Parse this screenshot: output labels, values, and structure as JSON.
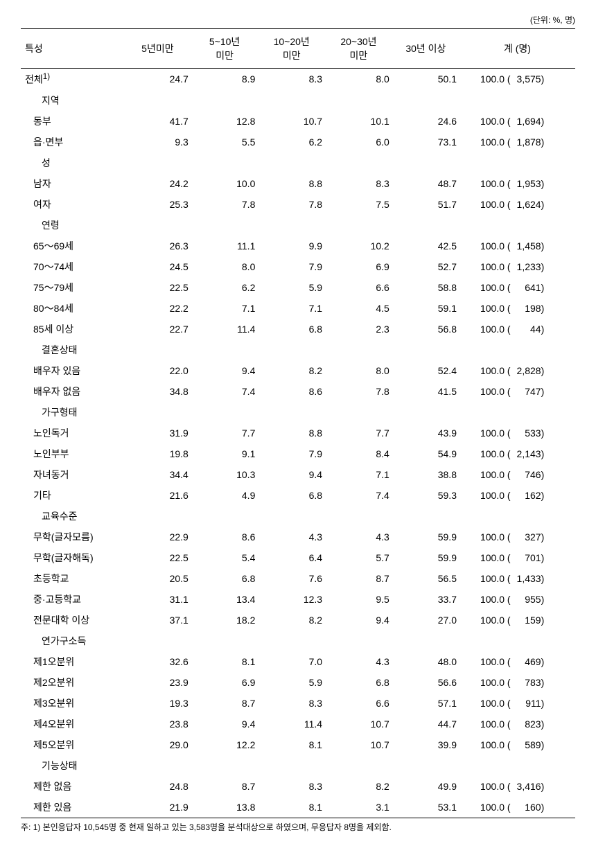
{
  "unit_label": "(단위: %, 명)",
  "columns": {
    "c0": "특성",
    "c1": "5년미만",
    "c2": "5~10년\n미만",
    "c3": "10~20년\n미만",
    "c4": "20~30년\n미만",
    "c5": "30년 이상",
    "c6": "계 (명)"
  },
  "sections": [
    {
      "header": null,
      "rows": [
        {
          "label": "전체",
          "sup": "1)",
          "v": [
            "24.7",
            "8.9",
            "8.3",
            "8.0",
            "50.1"
          ],
          "pct": "100.0",
          "n": "3,575",
          "indent": false
        }
      ]
    },
    {
      "header": "지역",
      "rows": [
        {
          "label": "동부",
          "v": [
            "41.7",
            "12.8",
            "10.7",
            "10.1",
            "24.6"
          ],
          "pct": "100.0",
          "n": "1,694",
          "indent": true
        },
        {
          "label": "읍·면부",
          "v": [
            "9.3",
            "5.5",
            "6.2",
            "6.0",
            "73.1"
          ],
          "pct": "100.0",
          "n": "1,878",
          "indent": true
        }
      ]
    },
    {
      "header": "성",
      "rows": [
        {
          "label": "남자",
          "v": [
            "24.2",
            "10.0",
            "8.8",
            "8.3",
            "48.7"
          ],
          "pct": "100.0",
          "n": "1,953",
          "indent": true
        },
        {
          "label": "여자",
          "v": [
            "25.3",
            "7.8",
            "7.8",
            "7.5",
            "51.7"
          ],
          "pct": "100.0",
          "n": "1,624",
          "indent": true
        }
      ]
    },
    {
      "header": "연령",
      "rows": [
        {
          "label": "65～69세",
          "v": [
            "26.3",
            "11.1",
            "9.9",
            "10.2",
            "42.5"
          ],
          "pct": "100.0",
          "n": "1,458",
          "indent": true
        },
        {
          "label": "70～74세",
          "v": [
            "24.5",
            "8.0",
            "7.9",
            "6.9",
            "52.7"
          ],
          "pct": "100.0",
          "n": "1,233",
          "indent": true
        },
        {
          "label": "75～79세",
          "v": [
            "22.5",
            "6.2",
            "5.9",
            "6.6",
            "58.8"
          ],
          "pct": "100.0",
          "n": "641",
          "indent": true
        },
        {
          "label": "80～84세",
          "v": [
            "22.2",
            "7.1",
            "7.1",
            "4.5",
            "59.1"
          ],
          "pct": "100.0",
          "n": "198",
          "indent": true
        },
        {
          "label": "85세 이상",
          "v": [
            "22.7",
            "11.4",
            "6.8",
            "2.3",
            "56.8"
          ],
          "pct": "100.0",
          "n": "44",
          "indent": true
        }
      ]
    },
    {
      "header": "결혼상태",
      "rows": [
        {
          "label": "배우자 있음",
          "v": [
            "22.0",
            "9.4",
            "8.2",
            "8.0",
            "52.4"
          ],
          "pct": "100.0",
          "n": "2,828",
          "indent": true
        },
        {
          "label": "배우자 없음",
          "v": [
            "34.8",
            "7.4",
            "8.6",
            "7.8",
            "41.5"
          ],
          "pct": "100.0",
          "n": "747",
          "indent": true
        }
      ]
    },
    {
      "header": "가구형태",
      "rows": [
        {
          "label": "노인독거",
          "v": [
            "31.9",
            "7.7",
            "8.8",
            "7.7",
            "43.9"
          ],
          "pct": "100.0",
          "n": "533",
          "indent": true
        },
        {
          "label": "노인부부",
          "v": [
            "19.8",
            "9.1",
            "7.9",
            "8.4",
            "54.9"
          ],
          "pct": "100.0",
          "n": "2,143",
          "indent": true
        },
        {
          "label": "자녀동거",
          "v": [
            "34.4",
            "10.3",
            "9.4",
            "7.1",
            "38.8"
          ],
          "pct": "100.0",
          "n": "746",
          "indent": true
        },
        {
          "label": "기타",
          "v": [
            "21.6",
            "4.9",
            "6.8",
            "7.4",
            "59.3"
          ],
          "pct": "100.0",
          "n": "162",
          "indent": true
        }
      ]
    },
    {
      "header": "교육수준",
      "rows": [
        {
          "label": "무학(글자모름)",
          "v": [
            "22.9",
            "8.6",
            "4.3",
            "4.3",
            "59.9"
          ],
          "pct": "100.0",
          "n": "327",
          "indent": true
        },
        {
          "label": "무학(글자해독)",
          "v": [
            "22.5",
            "5.4",
            "6.4",
            "5.7",
            "59.9"
          ],
          "pct": "100.0",
          "n": "701",
          "indent": true
        },
        {
          "label": "초등학교",
          "v": [
            "20.5",
            "6.8",
            "7.6",
            "8.7",
            "56.5"
          ],
          "pct": "100.0",
          "n": "1,433",
          "indent": true
        },
        {
          "label": "중·고등학교",
          "v": [
            "31.1",
            "13.4",
            "12.3",
            "9.5",
            "33.7"
          ],
          "pct": "100.0",
          "n": "955",
          "indent": true
        },
        {
          "label": "전문대학 이상",
          "v": [
            "37.1",
            "18.2",
            "8.2",
            "9.4",
            "27.0"
          ],
          "pct": "100.0",
          "n": "159",
          "indent": true
        }
      ]
    },
    {
      "header": "연가구소득",
      "rows": [
        {
          "label": "제1오분위",
          "v": [
            "32.6",
            "8.1",
            "7.0",
            "4.3",
            "48.0"
          ],
          "pct": "100.0",
          "n": "469",
          "indent": true
        },
        {
          "label": "제2오분위",
          "v": [
            "23.9",
            "6.9",
            "5.9",
            "6.8",
            "56.6"
          ],
          "pct": "100.0",
          "n": "783",
          "indent": true
        },
        {
          "label": "제3오분위",
          "v": [
            "19.3",
            "8.7",
            "8.3",
            "6.6",
            "57.1"
          ],
          "pct": "100.0",
          "n": "911",
          "indent": true
        },
        {
          "label": "제4오분위",
          "v": [
            "23.8",
            "9.4",
            "11.4",
            "10.7",
            "44.7"
          ],
          "pct": "100.0",
          "n": "823",
          "indent": true
        },
        {
          "label": "제5오분위",
          "v": [
            "29.0",
            "12.2",
            "8.1",
            "10.7",
            "39.9"
          ],
          "pct": "100.0",
          "n": "589",
          "indent": true
        }
      ]
    },
    {
      "header": "기능상태",
      "rows": [
        {
          "label": "제한 없음",
          "v": [
            "24.8",
            "8.7",
            "8.3",
            "8.2",
            "49.9"
          ],
          "pct": "100.0",
          "n": "3,416",
          "indent": true
        },
        {
          "label": "제한 있음",
          "v": [
            "21.9",
            "13.8",
            "8.1",
            "3.1",
            "53.1"
          ],
          "pct": "100.0",
          "n": "160",
          "indent": true
        }
      ]
    }
  ],
  "footnote": "주: 1) 본인응답자 10,545명 중 현재 일하고 있는 3,583명을 분석대상으로 하였으며, 무응답자 8명을 제외함."
}
